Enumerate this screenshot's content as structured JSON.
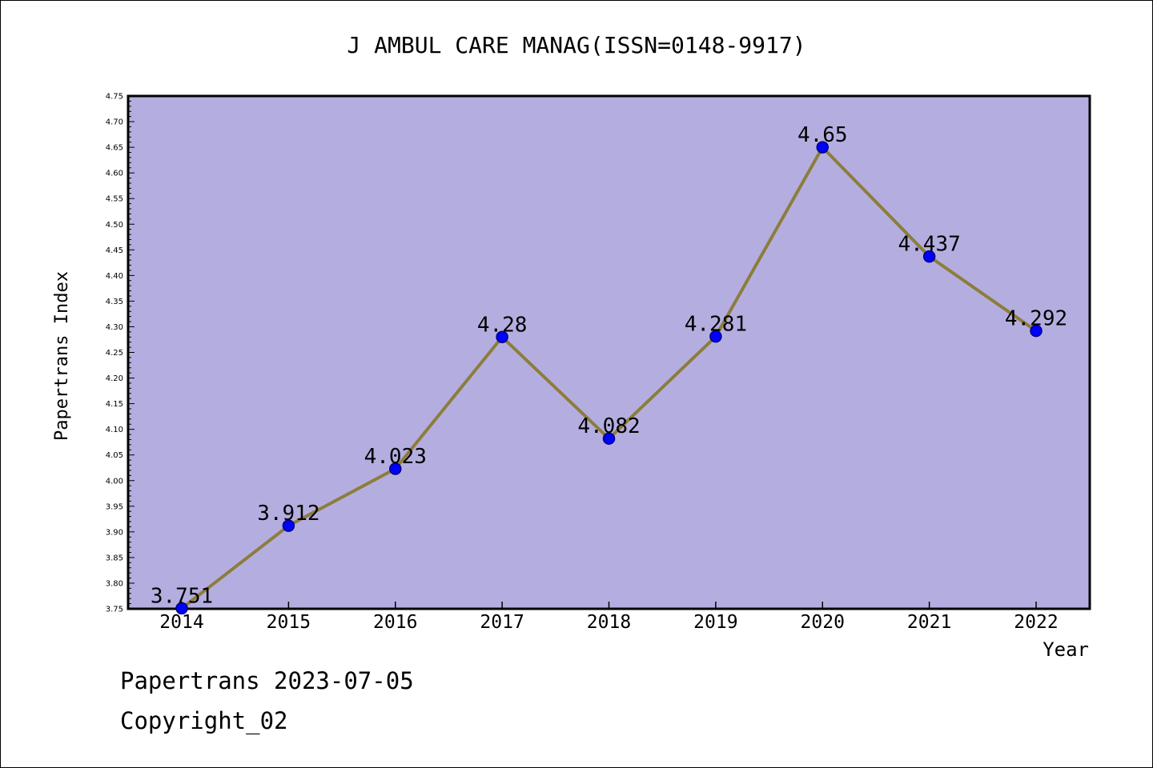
{
  "chart_data": {
    "type": "line",
    "title": "J AMBUL CARE MANAG(ISSN=0148-9917)",
    "xlabel": "Year",
    "ylabel": "Papertrans Index",
    "categories": [
      "2014",
      "2015",
      "2016",
      "2017",
      "2018",
      "2019",
      "2020",
      "2021",
      "2022"
    ],
    "series": [
      {
        "values": [
          3.751,
          3.912,
          4.023,
          4.28,
          4.082,
          4.281,
          4.65,
          4.437,
          4.292
        ],
        "labels": [
          "3.751",
          "3.912",
          "4.023",
          "4.28",
          "4.082",
          "4.281",
          "4.65",
          "4.437",
          "4.292"
        ]
      }
    ],
    "ylim": [
      3.75,
      4.75
    ],
    "ytick_step": 0.05,
    "yticks": [
      "3.75",
      "3.80",
      "3.85",
      "3.90",
      "3.95",
      "4.00",
      "4.05",
      "4.10",
      "4.15",
      "4.20",
      "4.25",
      "4.30",
      "4.35",
      "4.40",
      "4.45",
      "4.50",
      "4.55",
      "4.60",
      "4.65",
      "4.70",
      "4.75"
    ],
    "grid": false,
    "legend": "none",
    "colors": {
      "plot_background": "#b4aee0",
      "line": "#8c7d3c",
      "marker": "#0000ff",
      "marker_edge": "#000080"
    }
  },
  "footer": {
    "line1": "Papertrans 2023-07-05",
    "line2": "Copyright_02"
  }
}
